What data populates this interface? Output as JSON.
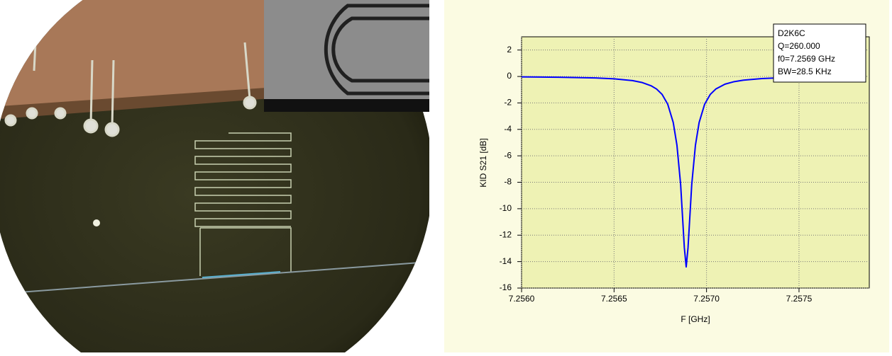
{
  "chart_data": {
    "type": "line",
    "x_label": "F [GHz]",
    "y_label": "KID S21 [dB]",
    "annotation": [
      "D2K6C",
      "Q=260.000",
      "f0=7.2569 GHz",
      "BW=28.5 KHz"
    ],
    "x": [
      7.256,
      7.2562,
      7.2564,
      7.2565,
      7.2566,
      7.25665,
      7.2567,
      7.25673,
      7.25676,
      7.25679,
      7.25682,
      7.25684,
      7.25686,
      7.25688,
      7.25689,
      7.2569,
      7.25692,
      7.25694,
      7.25696,
      7.25699,
      7.25702,
      7.25705,
      7.2571,
      7.25715,
      7.2572,
      7.2573,
      7.2574,
      7.2576,
      7.2578
    ],
    "values": [
      -0.03,
      -0.06,
      -0.11,
      -0.18,
      -0.31,
      -0.45,
      -0.7,
      -0.95,
      -1.36,
      -2.09,
      -3.48,
      -5.2,
      -8.17,
      -12.94,
      -14.4,
      -12.94,
      -8.17,
      -5.2,
      -3.48,
      -2.09,
      -1.36,
      -0.95,
      -0.58,
      -0.39,
      -0.28,
      -0.16,
      -0.1,
      -0.05,
      -0.03
    ],
    "color": "#0000ff",
    "xlim": [
      7.256,
      7.25788
    ],
    "xticks": [
      {
        "value": 7.256,
        "label": "7.2560"
      },
      {
        "value": 7.2565,
        "label": "7.2565"
      },
      {
        "value": 7.257,
        "label": "7.2570"
      },
      {
        "value": 7.2575,
        "label": "7.2575"
      }
    ],
    "ylim": [
      -16,
      3
    ],
    "yticks": [
      2,
      0,
      -2,
      -4,
      -6,
      -8,
      -10,
      -12,
      -14,
      -16
    ],
    "grid": true
  }
}
